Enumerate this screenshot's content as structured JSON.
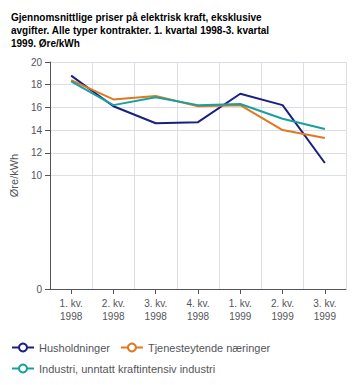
{
  "chart_data": {
    "type": "line",
    "title": "Gjennomsnittlige priser på elektrisk kraft, eksklusive\navgifter. Alle typer kontrakter. 1. kvartal 1998-3. kvartal\n1999. Øre/kWh",
    "y_label": "Øre/kWh",
    "categories": [
      "1. kv.\n1998",
      "2. kv.\n1998",
      "3. kv.\n1998",
      "4. kv.\n1998",
      "1. kv.\n1999",
      "2. kv.\n1999",
      "3. kv.\n1999"
    ],
    "series": [
      {
        "name": "Husholdninger",
        "color": "#1a2080",
        "values": [
          18.8,
          16.1,
          14.6,
          14.7,
          17.2,
          16.2,
          11.1
        ]
      },
      {
        "name": "Tjenesteytende næringer",
        "color": "#e07820",
        "values": [
          18.4,
          16.7,
          17.0,
          16.1,
          16.2,
          14.0,
          13.3
        ]
      },
      {
        "name": "Industri, unntatt kraftintensiv industri",
        "color": "#18a0a0",
        "values": [
          18.3,
          16.2,
          16.9,
          16.2,
          16.3,
          15.0,
          14.1
        ]
      }
    ],
    "ylim": [
      0,
      20
    ],
    "yticks": [
      0,
      10,
      12,
      14,
      16,
      18,
      20
    ],
    "grid": true,
    "legend": "bottom"
  }
}
